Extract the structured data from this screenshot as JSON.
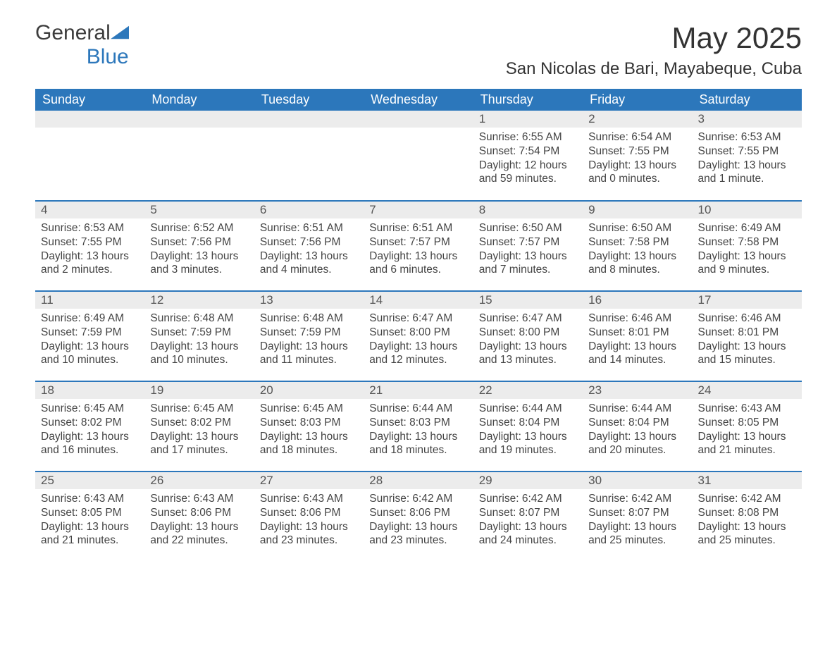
{
  "brand": {
    "name_part1": "General",
    "name_part2": "Blue",
    "tri_color": "#2c77bb"
  },
  "title": "May 2025",
  "location": "San Nicolas de Bari, Mayabeque, Cuba",
  "header_bg": "#2c77bb",
  "header_fg": "#ffffff",
  "daybar_bg": "#ececec",
  "row_divider": "#2c77bb",
  "text_color": "#444444",
  "weekdays": [
    "Sunday",
    "Monday",
    "Tuesday",
    "Wednesday",
    "Thursday",
    "Friday",
    "Saturday"
  ],
  "labels": {
    "sunrise": "Sunrise",
    "sunset": "Sunset",
    "daylight": "Daylight"
  },
  "weeks": [
    [
      {
        "blank": true
      },
      {
        "blank": true
      },
      {
        "blank": true
      },
      {
        "blank": true
      },
      {
        "day": 1,
        "sunrise": "6:55 AM",
        "sunset": "7:54 PM",
        "daylight": "12 hours and 59 minutes."
      },
      {
        "day": 2,
        "sunrise": "6:54 AM",
        "sunset": "7:55 PM",
        "daylight": "13 hours and 0 minutes."
      },
      {
        "day": 3,
        "sunrise": "6:53 AM",
        "sunset": "7:55 PM",
        "daylight": "13 hours and 1 minute."
      }
    ],
    [
      {
        "day": 4,
        "sunrise": "6:53 AM",
        "sunset": "7:55 PM",
        "daylight": "13 hours and 2 minutes."
      },
      {
        "day": 5,
        "sunrise": "6:52 AM",
        "sunset": "7:56 PM",
        "daylight": "13 hours and 3 minutes."
      },
      {
        "day": 6,
        "sunrise": "6:51 AM",
        "sunset": "7:56 PM",
        "daylight": "13 hours and 4 minutes."
      },
      {
        "day": 7,
        "sunrise": "6:51 AM",
        "sunset": "7:57 PM",
        "daylight": "13 hours and 6 minutes."
      },
      {
        "day": 8,
        "sunrise": "6:50 AM",
        "sunset": "7:57 PM",
        "daylight": "13 hours and 7 minutes."
      },
      {
        "day": 9,
        "sunrise": "6:50 AM",
        "sunset": "7:58 PM",
        "daylight": "13 hours and 8 minutes."
      },
      {
        "day": 10,
        "sunrise": "6:49 AM",
        "sunset": "7:58 PM",
        "daylight": "13 hours and 9 minutes."
      }
    ],
    [
      {
        "day": 11,
        "sunrise": "6:49 AM",
        "sunset": "7:59 PM",
        "daylight": "13 hours and 10 minutes."
      },
      {
        "day": 12,
        "sunrise": "6:48 AM",
        "sunset": "7:59 PM",
        "daylight": "13 hours and 10 minutes."
      },
      {
        "day": 13,
        "sunrise": "6:48 AM",
        "sunset": "7:59 PM",
        "daylight": "13 hours and 11 minutes."
      },
      {
        "day": 14,
        "sunrise": "6:47 AM",
        "sunset": "8:00 PM",
        "daylight": "13 hours and 12 minutes."
      },
      {
        "day": 15,
        "sunrise": "6:47 AM",
        "sunset": "8:00 PM",
        "daylight": "13 hours and 13 minutes."
      },
      {
        "day": 16,
        "sunrise": "6:46 AM",
        "sunset": "8:01 PM",
        "daylight": "13 hours and 14 minutes."
      },
      {
        "day": 17,
        "sunrise": "6:46 AM",
        "sunset": "8:01 PM",
        "daylight": "13 hours and 15 minutes."
      }
    ],
    [
      {
        "day": 18,
        "sunrise": "6:45 AM",
        "sunset": "8:02 PM",
        "daylight": "13 hours and 16 minutes."
      },
      {
        "day": 19,
        "sunrise": "6:45 AM",
        "sunset": "8:02 PM",
        "daylight": "13 hours and 17 minutes."
      },
      {
        "day": 20,
        "sunrise": "6:45 AM",
        "sunset": "8:03 PM",
        "daylight": "13 hours and 18 minutes."
      },
      {
        "day": 21,
        "sunrise": "6:44 AM",
        "sunset": "8:03 PM",
        "daylight": "13 hours and 18 minutes."
      },
      {
        "day": 22,
        "sunrise": "6:44 AM",
        "sunset": "8:04 PM",
        "daylight": "13 hours and 19 minutes."
      },
      {
        "day": 23,
        "sunrise": "6:44 AM",
        "sunset": "8:04 PM",
        "daylight": "13 hours and 20 minutes."
      },
      {
        "day": 24,
        "sunrise": "6:43 AM",
        "sunset": "8:05 PM",
        "daylight": "13 hours and 21 minutes."
      }
    ],
    [
      {
        "day": 25,
        "sunrise": "6:43 AM",
        "sunset": "8:05 PM",
        "daylight": "13 hours and 21 minutes."
      },
      {
        "day": 26,
        "sunrise": "6:43 AM",
        "sunset": "8:06 PM",
        "daylight": "13 hours and 22 minutes."
      },
      {
        "day": 27,
        "sunrise": "6:43 AM",
        "sunset": "8:06 PM",
        "daylight": "13 hours and 23 minutes."
      },
      {
        "day": 28,
        "sunrise": "6:42 AM",
        "sunset": "8:06 PM",
        "daylight": "13 hours and 23 minutes."
      },
      {
        "day": 29,
        "sunrise": "6:42 AM",
        "sunset": "8:07 PM",
        "daylight": "13 hours and 24 minutes."
      },
      {
        "day": 30,
        "sunrise": "6:42 AM",
        "sunset": "8:07 PM",
        "daylight": "13 hours and 25 minutes."
      },
      {
        "day": 31,
        "sunrise": "6:42 AM",
        "sunset": "8:08 PM",
        "daylight": "13 hours and 25 minutes."
      }
    ]
  ]
}
